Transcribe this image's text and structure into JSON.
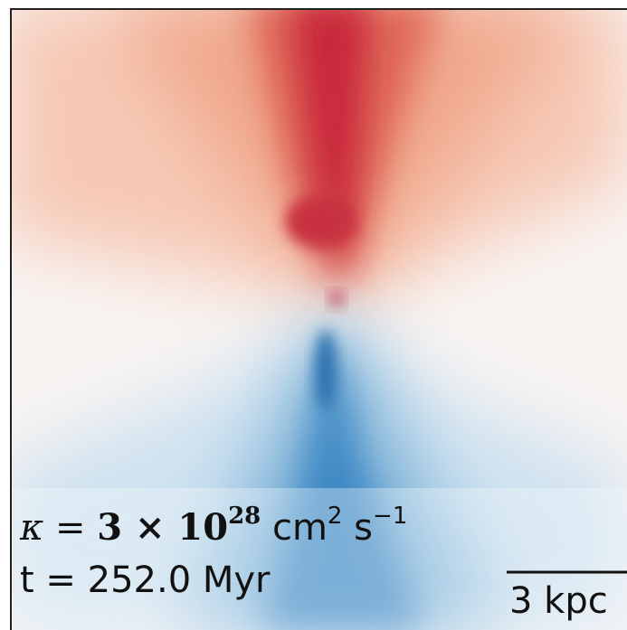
{
  "annotations": {
    "kappa": {
      "symbol": "κ = ",
      "mantissa": "3 × 10",
      "exponent": "28",
      "unit1": " cm",
      "unit1_exp": "2",
      "unit2": " s",
      "unit2_exp": "−1"
    },
    "time": "t = 252.0 Myr",
    "scale_bar": "3 kpc"
  }
}
